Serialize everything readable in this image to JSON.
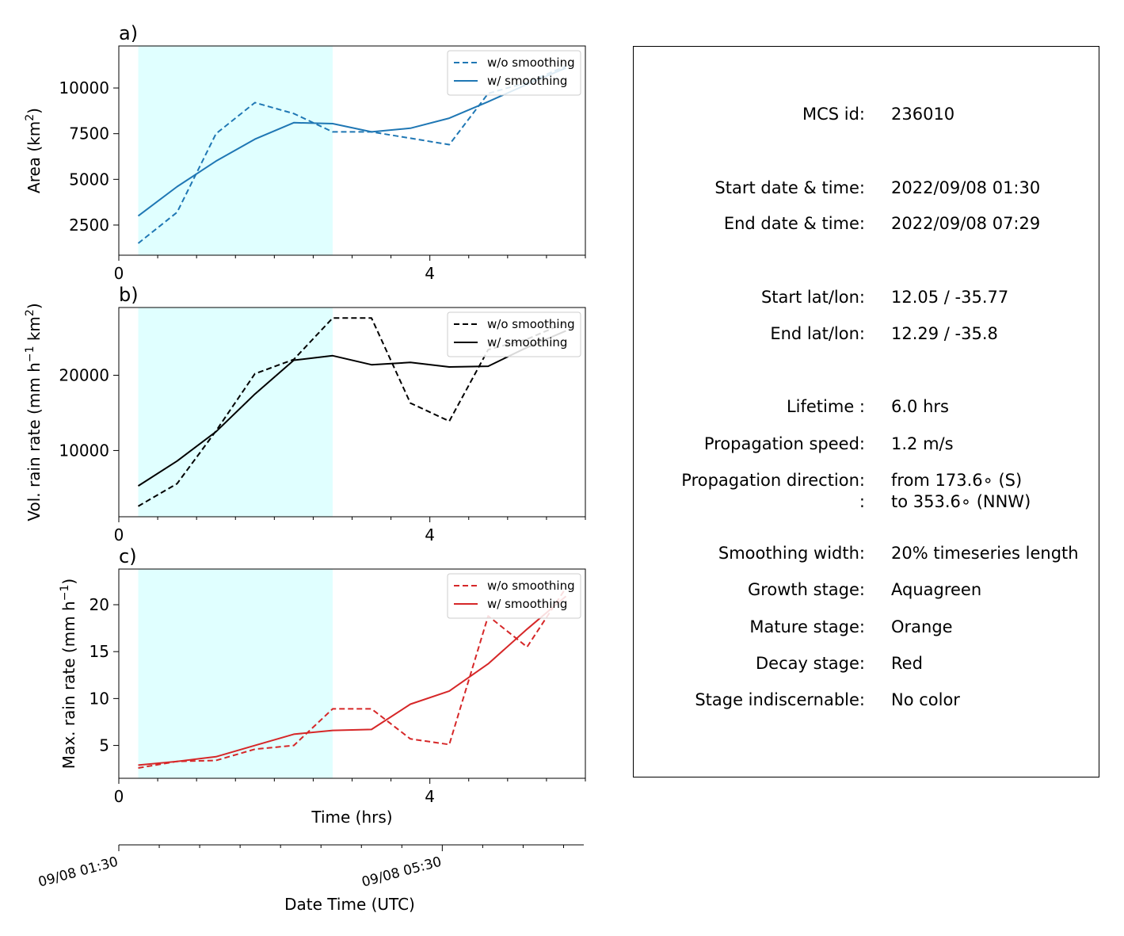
{
  "colors": {
    "shade": "#e0ffff",
    "area": "#1f77b4",
    "vol": "#000000",
    "max": "#d62728"
  },
  "chart_data": [
    {
      "type": "line",
      "panel_label": "a)",
      "ylabel": "Area  (km",
      "ylabel_sup": "2",
      "ylabel_end": ")",
      "xlim": [
        0,
        6
      ],
      "ylim": [
        850,
        12300
      ],
      "yticks": [
        2500,
        5000,
        7500,
        10000
      ],
      "ytick_labels": [
        "2500",
        "5000",
        "7500",
        "10000"
      ],
      "xticks_major": [
        0,
        4
      ],
      "xtick_labels": [
        "0",
        "4"
      ],
      "xticks_minor": [
        0.5,
        1,
        1.5,
        2,
        2.5,
        3,
        3.5,
        4.5,
        5,
        5.5,
        6
      ],
      "shade_x": [
        0.25,
        2.75
      ],
      "legend": "top-right",
      "series": [
        {
          "name": "w/o smoothing",
          "style": "dashed",
          "x": [
            0.25,
            0.75,
            1.25,
            1.75,
            2.25,
            2.75,
            3.25,
            3.75,
            4.25,
            4.75,
            5.25,
            5.75
          ],
          "y": [
            1500,
            3200,
            7500,
            9200,
            8600,
            7600,
            7600,
            7250,
            6900,
            9700,
            10300,
            11200
          ]
        },
        {
          "name": "w/ smoothing",
          "style": "solid",
          "x": [
            0.25,
            0.75,
            1.25,
            1.75,
            2.25,
            2.75,
            3.25,
            3.75,
            4.25,
            4.75,
            5.25,
            5.75
          ],
          "y": [
            3000,
            4600,
            6000,
            7200,
            8100,
            8050,
            7600,
            7800,
            8350,
            9250,
            10200,
            11100
          ]
        }
      ]
    },
    {
      "type": "line",
      "panel_label": "b)",
      "ylabel": "Vol. rain rate (mm h",
      "ylabel_sup": "−1",
      "ylabel_mid": " km",
      "ylabel_sup2": "2",
      "ylabel_end": ")",
      "xlim": [
        0,
        6
      ],
      "ylim": [
        1200,
        29000
      ],
      "yticks": [
        10000,
        20000
      ],
      "ytick_labels": [
        "10000",
        "20000"
      ],
      "xticks_major": [
        0,
        4
      ],
      "xtick_labels": [
        "0",
        "4"
      ],
      "xticks_minor": [
        0.5,
        1,
        1.5,
        2,
        2.5,
        3,
        3.5,
        4.5,
        5,
        5.5,
        6
      ],
      "shade_x": [
        0.25,
        2.75
      ],
      "legend": "top-right",
      "series": [
        {
          "name": "w/o smoothing",
          "style": "dashed",
          "x": [
            0.25,
            0.75,
            1.25,
            1.75,
            2.25,
            2.75,
            3.25,
            3.75,
            4.25,
            4.75,
            5.25,
            5.75
          ],
          "y": [
            2600,
            5600,
            12600,
            20200,
            22100,
            27600,
            27600,
            16300,
            13900,
            23400,
            24800,
            27000
          ]
        },
        {
          "name": "w/ smoothing",
          "style": "solid",
          "x": [
            0.25,
            0.75,
            1.25,
            1.75,
            2.25,
            2.75,
            3.25,
            3.75,
            4.25,
            4.75,
            5.25,
            5.75
          ],
          "y": [
            5300,
            8600,
            12500,
            17500,
            22000,
            22600,
            21400,
            21700,
            21100,
            21200,
            23700,
            25900
          ]
        }
      ]
    },
    {
      "type": "line",
      "panel_label": "c)",
      "ylabel": "Max. rain rate  (mm h",
      "ylabel_sup": "−1",
      "ylabel_end": ")",
      "xlabel": "Time (hrs)",
      "xlim": [
        0,
        6
      ],
      "ylim": [
        1.5,
        23.8
      ],
      "yticks": [
        5,
        10,
        15,
        20
      ],
      "ytick_labels": [
        "5",
        "10",
        "15",
        "20"
      ],
      "xticks_major": [
        0,
        4
      ],
      "xtick_labels": [
        "0",
        "4"
      ],
      "xticks_minor": [
        0.5,
        1,
        1.5,
        2,
        2.5,
        3,
        3.5,
        4.5,
        5,
        5.5,
        6
      ],
      "shade_x": [
        0.25,
        2.75
      ],
      "legend": "top-right",
      "series": [
        {
          "name": "w/o smoothing",
          "style": "dashed",
          "x": [
            0.25,
            0.75,
            1.25,
            1.75,
            2.25,
            2.75,
            3.25,
            3.75,
            4.25,
            4.75,
            5.25,
            5.75
          ],
          "y": [
            2.6,
            3.3,
            3.4,
            4.6,
            5.0,
            8.9,
            8.9,
            5.7,
            5.1,
            18.8,
            15.5,
            21.8
          ]
        },
        {
          "name": "w/ smoothing",
          "style": "solid",
          "x": [
            0.25,
            0.75,
            1.25,
            1.75,
            2.25,
            2.75,
            3.25,
            3.75,
            4.25,
            4.75,
            5.25,
            5.75
          ],
          "y": [
            2.9,
            3.3,
            3.8,
            5.0,
            6.2,
            6.6,
            6.7,
            9.4,
            10.8,
            13.7,
            17.4,
            20.9
          ]
        }
      ]
    }
  ],
  "time_axis": {
    "label": "Date Time (UTC)",
    "major_ticks": [
      0,
      4
    ],
    "major_labels": [
      "09/08 01:30",
      "09/08 05:30"
    ],
    "minor_ticks": [
      0.5,
      1,
      1.5,
      2,
      2.5,
      3,
      3.5,
      4.5,
      5,
      5.5
    ]
  },
  "info": {
    "mcs_id_label": "MCS id:",
    "mcs_id": "236010",
    "start_dt_label": "Start date & time:",
    "start_dt": "2022/09/08 01:30",
    "end_dt_label": "End date & time:",
    "end_dt": "2022/09/08 07:29",
    "start_ll_label": "Start lat/lon:",
    "start_ll": "12.05 / -35.77",
    "end_ll_label": "End lat/lon:",
    "end_ll": "12.29 / -35.8",
    "lifetime_label": "Lifetime :",
    "lifetime": "6.0 hrs",
    "speed_label": "Propagation speed:",
    "speed": "1.2 m/s",
    "dir_label": "Propagation direction:",
    "dir_from": "from 173.6∘ (S)",
    "dir_label2": ":",
    "dir_to": "to   353.6∘ (NNW)",
    "smooth_label": "Smoothing width:",
    "smooth": "20% timeseries length",
    "growth_label": "Growth stage:",
    "growth": "Aquagreen",
    "mature_label": "Mature stage:",
    "mature": "Orange",
    "decay_label": "Decay stage:",
    "decay": "Red",
    "indisc_label": "Stage indiscernable:",
    "indisc": "No color"
  }
}
